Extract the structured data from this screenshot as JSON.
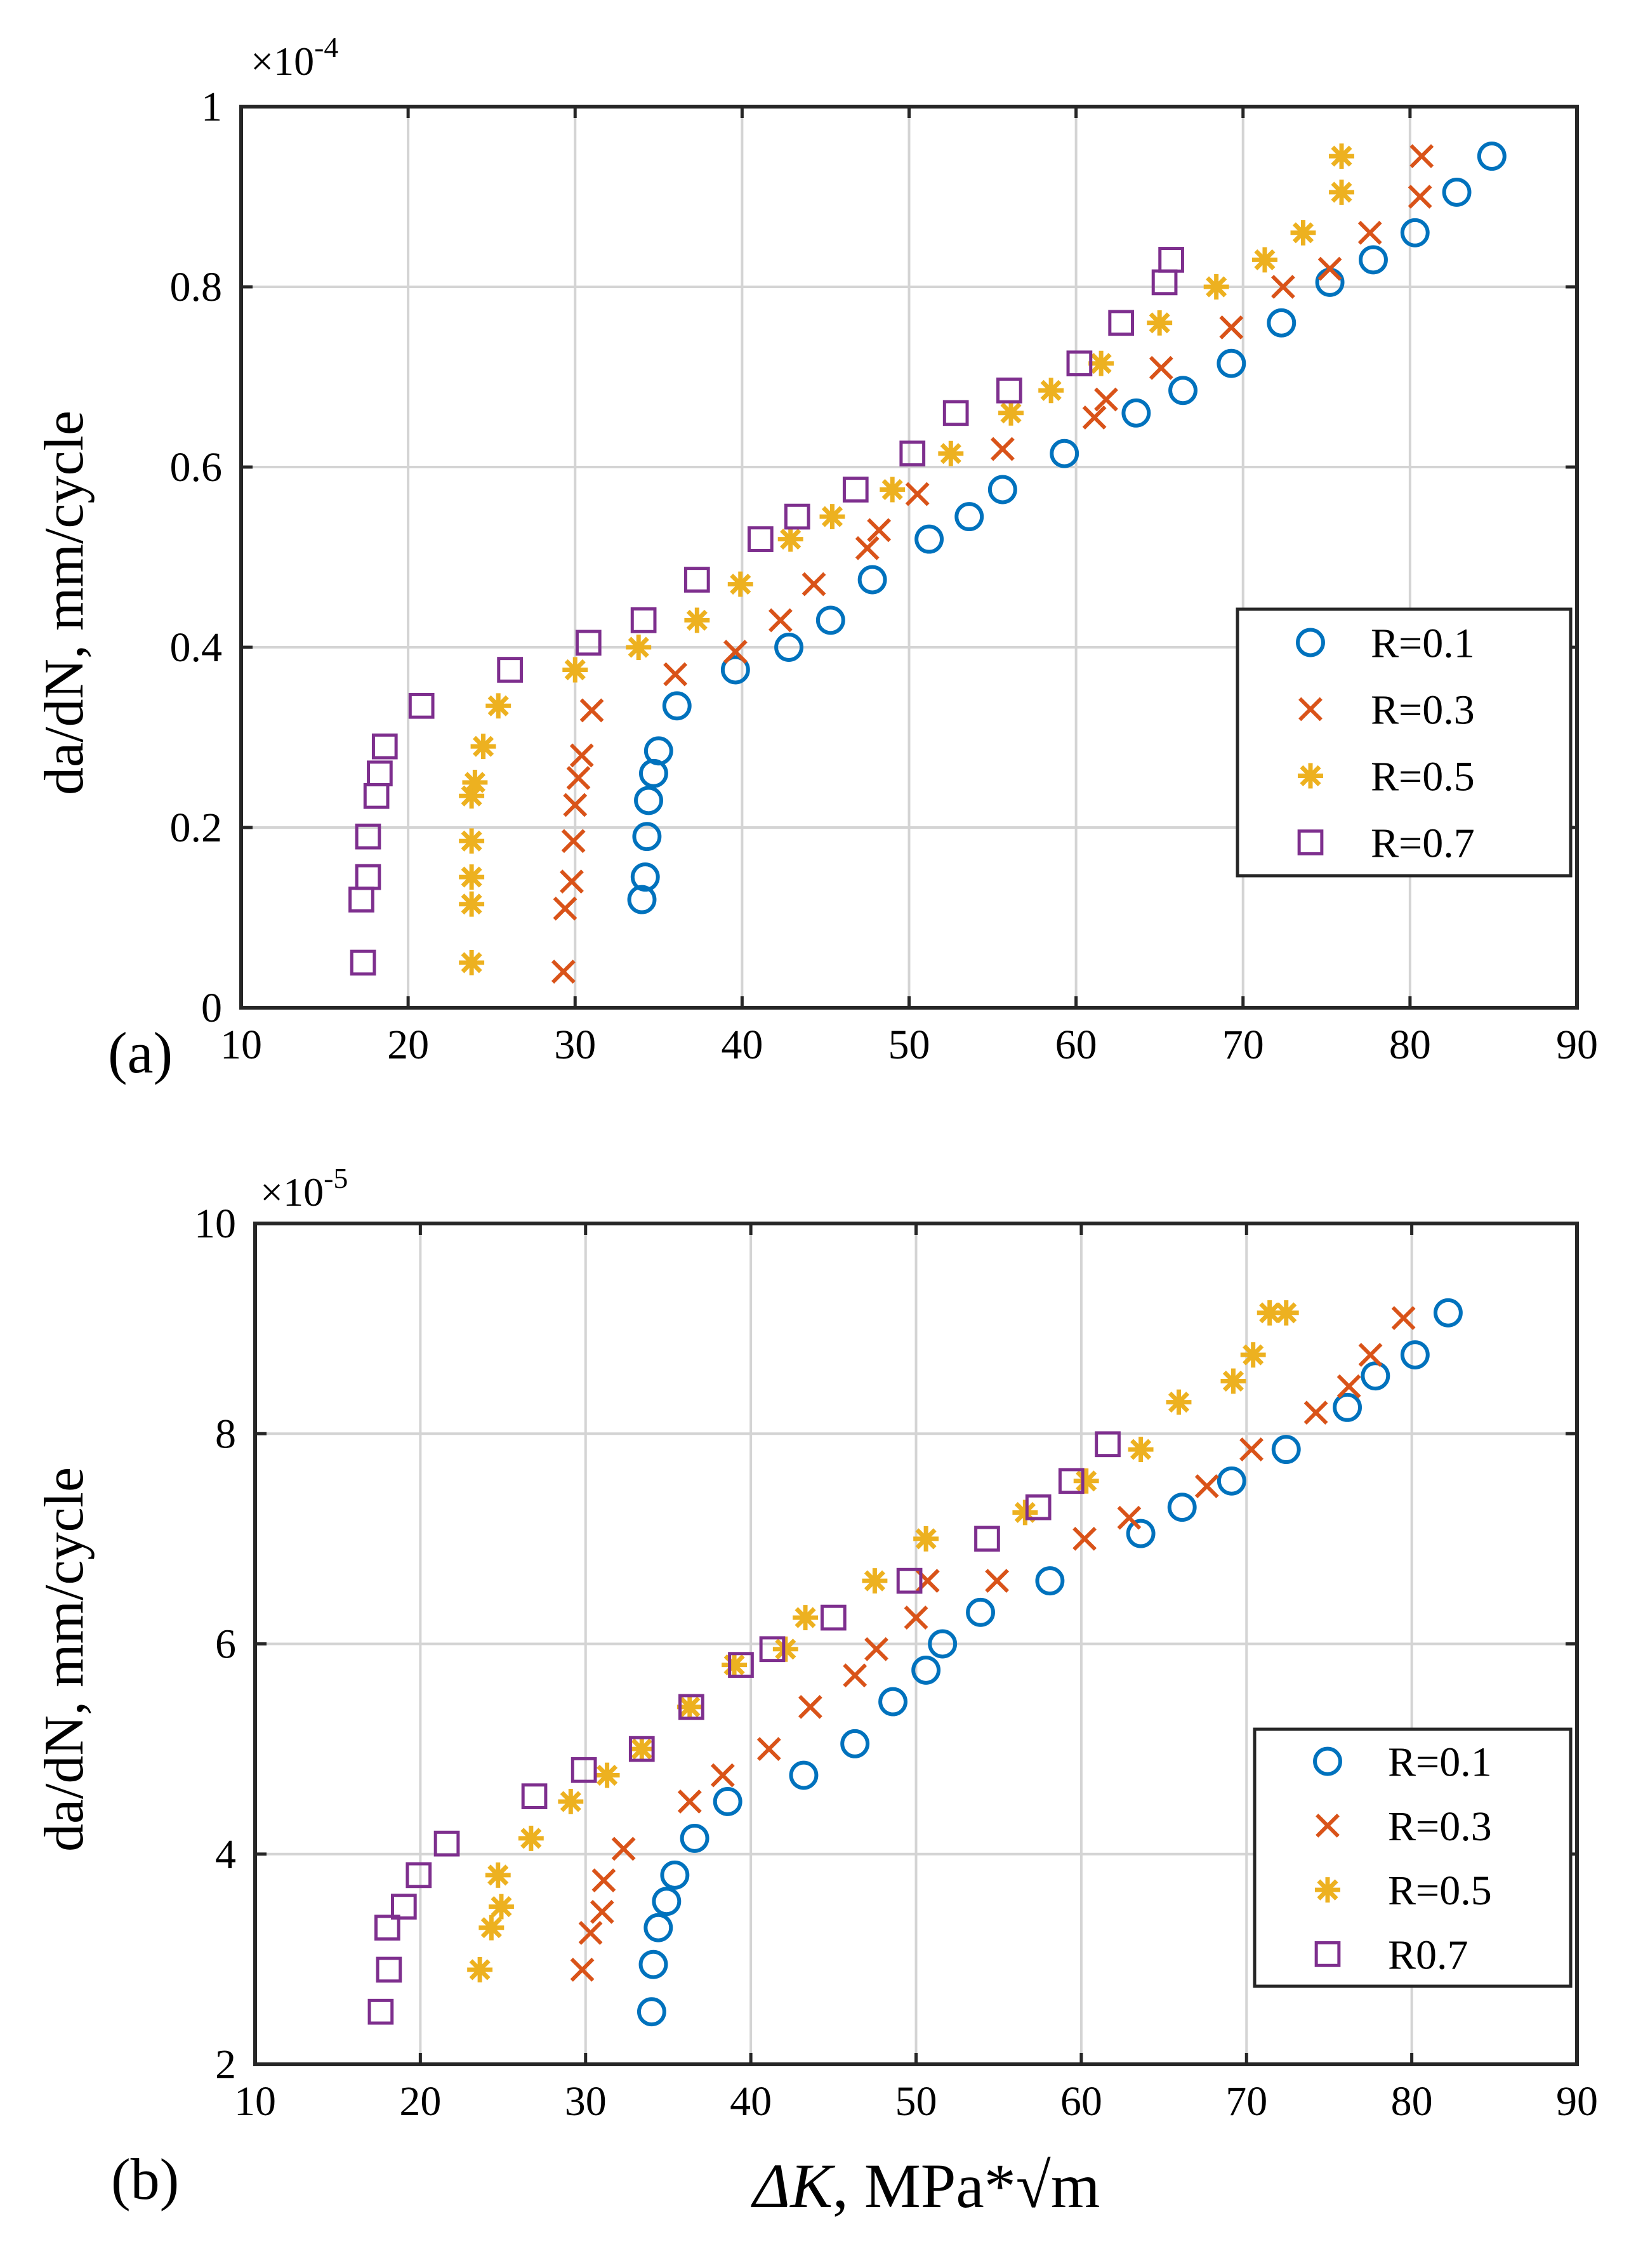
{
  "figure": {
    "xlabel_italic": "ΔK",
    "xlabel_rest": ", MPa*√m",
    "panel_a": "(a)",
    "panel_b": "(b)"
  },
  "colors": {
    "r01": "#0072bd",
    "r03": "#d95319",
    "r05": "#edb120",
    "r07": "#7e2f8e"
  },
  "chart_data": [
    {
      "type": "scatter",
      "panel": "(a)",
      "scale_base": "×10",
      "scale_exp": "-4",
      "xlabel": "ΔK, MPa*√m",
      "ylabel": "da/dN, mm/cycle",
      "xlim": [
        10,
        90
      ],
      "ylim": [
        0,
        1
      ],
      "xticks": [
        10,
        20,
        30,
        40,
        50,
        60,
        70,
        80,
        90
      ],
      "yticks": [
        0,
        0.2,
        0.4,
        0.6,
        0.8,
        1
      ],
      "ytick_labels": [
        "0",
        "0.2",
        "0.4",
        "0.6",
        "0.8",
        "1"
      ],
      "grid": true,
      "legend_position": "right",
      "series": [
        {
          "name": "R=0.1",
          "marker": "circle",
          "color": "#0072bd",
          "x": [
            34.0,
            34.2,
            34.3,
            34.4,
            34.7,
            35.0,
            36.1,
            39.6,
            42.8,
            45.3,
            47.8,
            51.2,
            53.6,
            55.6,
            59.3,
            63.6,
            66.4,
            69.3,
            72.3,
            75.2,
            77.8,
            80.3,
            82.8,
            84.9
          ],
          "y": [
            0.12,
            0.145,
            0.19,
            0.23,
            0.26,
            0.285,
            0.335,
            0.375,
            0.4,
            0.43,
            0.475,
            0.52,
            0.545,
            0.575,
            0.615,
            0.66,
            0.685,
            0.715,
            0.76,
            0.805,
            0.83,
            0.86,
            0.905,
            0.945
          ]
        },
        {
          "name": "R=0.3",
          "marker": "x",
          "color": "#d95319",
          "x": [
            29.3,
            29.4,
            29.8,
            29.9,
            30.0,
            30.2,
            30.4,
            31.0,
            36.0,
            39.6,
            42.3,
            44.3,
            47.5,
            48.2,
            50.5,
            55.6,
            61.1,
            61.8,
            65.1,
            69.3,
            72.4,
            75.2,
            77.6,
            80.6,
            80.7
          ],
          "y": [
            0.04,
            0.11,
            0.14,
            0.185,
            0.225,
            0.255,
            0.28,
            0.33,
            0.37,
            0.395,
            0.43,
            0.47,
            0.51,
            0.53,
            0.57,
            0.62,
            0.655,
            0.675,
            0.71,
            0.755,
            0.8,
            0.82,
            0.86,
            0.9,
            0.945
          ]
        },
        {
          "name": "R=0.5",
          "marker": "asterisk",
          "color": "#edb120",
          "x": [
            23.8,
            23.8,
            23.8,
            23.8,
            23.8,
            24.0,
            24.5,
            25.4,
            30.0,
            33.8,
            37.3,
            39.9,
            42.9,
            45.4,
            49.0,
            52.5,
            56.1,
            58.5,
            61.5,
            65.0,
            68.4,
            71.3,
            73.6,
            75.9,
            75.9
          ],
          "y": [
            0.05,
            0.115,
            0.145,
            0.185,
            0.235,
            0.25,
            0.29,
            0.335,
            0.375,
            0.4,
            0.43,
            0.47,
            0.52,
            0.545,
            0.575,
            0.615,
            0.66,
            0.685,
            0.715,
            0.76,
            0.8,
            0.83,
            0.86,
            0.905,
            0.945
          ]
        },
        {
          "name": "R=0.7",
          "marker": "square",
          "color": "#7e2f8e",
          "x": [
            17.3,
            17.2,
            17.6,
            17.6,
            18.1,
            18.3,
            18.6,
            20.8,
            26.1,
            30.8,
            34.1,
            37.3,
            41.1,
            43.3,
            46.8,
            50.2,
            52.8,
            56.0,
            60.2,
            62.7,
            65.3,
            65.7
          ],
          "y": [
            0.05,
            0.12,
            0.145,
            0.19,
            0.235,
            0.26,
            0.29,
            0.335,
            0.375,
            0.405,
            0.43,
            0.475,
            0.52,
            0.545,
            0.575,
            0.615,
            0.66,
            0.685,
            0.715,
            0.76,
            0.805,
            0.83
          ]
        }
      ]
    },
    {
      "type": "scatter",
      "panel": "(b)",
      "scale_base": "×10",
      "scale_exp": "-5",
      "xlabel": "ΔK, MPa*√m",
      "ylabel": "da/dN, mm/cycle",
      "xlim": [
        10,
        90
      ],
      "ylim": [
        2,
        10
      ],
      "xticks": [
        10,
        20,
        30,
        40,
        50,
        60,
        70,
        80,
        90
      ],
      "yticks": [
        2,
        4,
        6,
        8,
        10
      ],
      "ytick_labels": [
        "2",
        "4",
        "6",
        "8",
        "10"
      ],
      "grid": true,
      "legend_position": "bottom-right",
      "series": [
        {
          "name": "R=0.1",
          "marker": "circle",
          "color": "#0072bd",
          "x": [
            34.0,
            34.1,
            34.4,
            34.9,
            35.4,
            36.6,
            38.6,
            43.2,
            46.3,
            48.6,
            50.6,
            51.6,
            53.9,
            58.1,
            63.6,
            66.1,
            69.1,
            72.4,
            76.1,
            77.8,
            80.2,
            82.2
          ],
          "y": [
            2.5,
            2.95,
            3.3,
            3.55,
            3.8,
            4.15,
            4.5,
            4.75,
            5.05,
            5.45,
            5.75,
            6.0,
            6.3,
            6.6,
            7.05,
            7.3,
            7.55,
            7.85,
            8.25,
            8.55,
            8.75,
            9.15
          ]
        },
        {
          "name": "R=0.3",
          "marker": "x",
          "color": "#d95319",
          "x": [
            29.8,
            30.3,
            31.0,
            31.1,
            32.3,
            36.3,
            38.3,
            41.1,
            43.6,
            46.3,
            47.6,
            50.0,
            50.7,
            54.9,
            60.2,
            62.9,
            67.6,
            70.3,
            74.2,
            76.2,
            77.5,
            79.5
          ],
          "y": [
            2.9,
            3.25,
            3.45,
            3.75,
            4.05,
            4.5,
            4.75,
            5.0,
            5.4,
            5.7,
            5.95,
            6.25,
            6.6,
            6.6,
            7.0,
            7.2,
            7.5,
            7.85,
            8.2,
            8.45,
            8.75,
            9.1
          ]
        },
        {
          "name": "R=0.5",
          "marker": "asterisk",
          "color": "#edb120",
          "x": [
            23.6,
            24.3,
            24.9,
            24.7,
            26.7,
            29.1,
            31.3,
            33.4,
            36.3,
            39.0,
            42.1,
            43.3,
            47.5,
            50.6,
            56.6,
            60.3,
            63.6,
            65.9,
            69.2,
            70.4,
            71.4,
            72.4
          ],
          "y": [
            2.9,
            3.3,
            3.5,
            3.8,
            4.15,
            4.5,
            4.75,
            5.0,
            5.4,
            5.8,
            5.95,
            6.25,
            6.6,
            7.0,
            7.25,
            7.55,
            7.85,
            8.3,
            8.5,
            8.75,
            9.15,
            9.15
          ]
        },
        {
          "name": "R0.7",
          "marker": "square",
          "color": "#7e2f8e",
          "x": [
            17.6,
            18.1,
            18.0,
            19.0,
            19.9,
            21.6,
            26.9,
            29.9,
            33.4,
            36.4,
            39.4,
            41.3,
            45.0,
            49.6,
            54.3,
            57.4,
            59.4,
            61.6
          ],
          "y": [
            2.5,
            2.9,
            3.3,
            3.5,
            3.8,
            4.1,
            4.55,
            4.8,
            5.0,
            5.4,
            5.8,
            5.95,
            6.25,
            6.6,
            7.0,
            7.3,
            7.55,
            7.9
          ]
        }
      ]
    }
  ]
}
